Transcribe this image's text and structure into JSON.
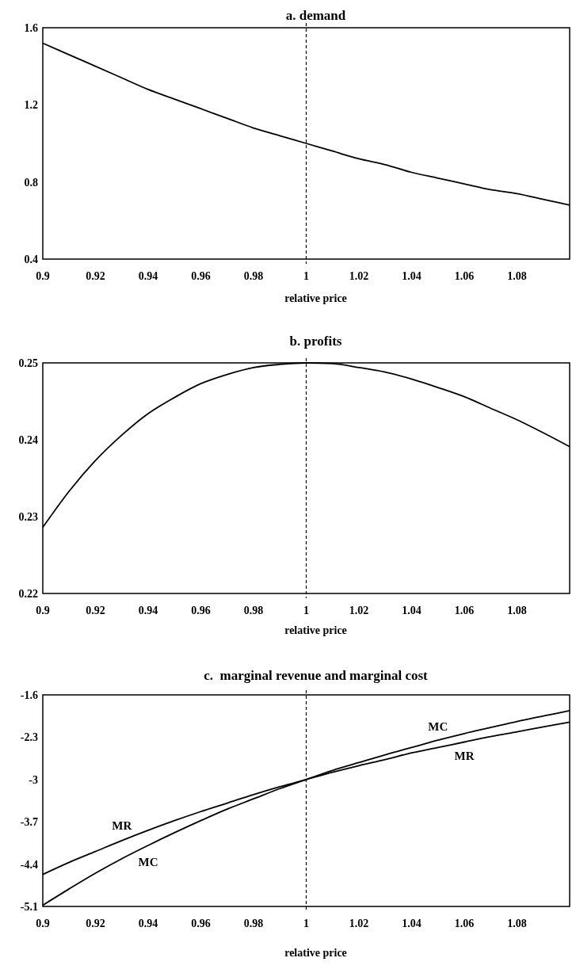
{
  "chart_data": [
    {
      "type": "line",
      "title": "a. demand",
      "xlabel": "relative price",
      "x": [
        0.9,
        0.91,
        0.92,
        0.93,
        0.94,
        0.95,
        0.96,
        0.97,
        0.98,
        0.99,
        1,
        1.01,
        1.02,
        1.03,
        1.04,
        1.05,
        1.06,
        1.07,
        1.08,
        1.09,
        1.1
      ],
      "series": [
        {
          "color": "#000000",
          "values": [
            1.52,
            1.46,
            1.4,
            1.34,
            1.28,
            1.23,
            1.18,
            1.13,
            1.08,
            1.04,
            1,
            0.96,
            0.92,
            0.89,
            0.85,
            0.82,
            0.79,
            0.76,
            0.74,
            0.71,
            0.68
          ]
        }
      ],
      "xlim": [
        0.9,
        1.1
      ],
      "xticks": [
        0.9,
        0.92,
        0.94,
        0.96,
        0.98,
        1,
        1.02,
        1.04,
        1.06,
        1.08
      ],
      "ylim": [
        0.4,
        1.6
      ],
      "yticks": [
        0.4,
        0.8,
        1.2,
        1.6
      ],
      "ref_lines": [
        {
          "axis": "x",
          "value": 1,
          "line_style": "dashed",
          "color": "#000000"
        }
      ],
      "grid": false
    },
    {
      "type": "line",
      "title": "b. profits",
      "xlabel": "relative price",
      "x": [
        0.9,
        0.91,
        0.92,
        0.93,
        0.94,
        0.95,
        0.96,
        0.97,
        0.98,
        0.99,
        1,
        1.01,
        1.02,
        1.03,
        1.04,
        1.05,
        1.06,
        1.07,
        1.08,
        1.09,
        1.1
      ],
      "series": [
        {
          "color": "#000000",
          "values": [
            0.2286,
            0.2333,
            0.2373,
            0.2406,
            0.2434,
            0.2455,
            0.2473,
            0.2485,
            0.2494,
            0.2498,
            0.25,
            0.2499,
            0.2494,
            0.2488,
            0.2479,
            0.2468,
            0.2456,
            0.2441,
            0.2426,
            0.2409,
            0.2391
          ]
        }
      ],
      "xlim": [
        0.9,
        1.1
      ],
      "xticks": [
        0.9,
        0.92,
        0.94,
        0.96,
        0.98,
        1,
        1.02,
        1.04,
        1.06,
        1.08
      ],
      "ylim": [
        0.22,
        0.25
      ],
      "yticks": [
        0.22,
        0.23,
        0.24,
        0.25
      ],
      "ref_lines": [
        {
          "axis": "x",
          "value": 1,
          "line_style": "dashed",
          "color": "#000000"
        }
      ],
      "grid": false
    },
    {
      "type": "line",
      "title": "c.  marginal revenue and marginal cost",
      "xlabel": "relative price",
      "x": [
        0.9,
        0.91,
        0.92,
        0.93,
        0.94,
        0.95,
        0.96,
        0.97,
        0.98,
        0.99,
        1,
        1.01,
        1.02,
        1.03,
        1.04,
        1.05,
        1.06,
        1.07,
        1.08,
        1.09,
        1.1
      ],
      "series": [
        {
          "name": "MR",
          "color": "#000000",
          "values": [
            -4.57,
            -4.37,
            -4.19,
            -4.01,
            -3.84,
            -3.68,
            -3.53,
            -3.39,
            -3.25,
            -3.12,
            -3,
            -2.88,
            -2.77,
            -2.67,
            -2.56,
            -2.47,
            -2.38,
            -2.29,
            -2.21,
            -2.13,
            -2.05
          ]
        },
        {
          "name": "MC",
          "color": "#000000",
          "values": [
            -5.08,
            -4.81,
            -4.55,
            -4.31,
            -4.09,
            -3.88,
            -3.68,
            -3.49,
            -3.32,
            -3.15,
            -3,
            -2.85,
            -2.72,
            -2.59,
            -2.47,
            -2.35,
            -2.24,
            -2.14,
            -2.04,
            -1.95,
            -1.86
          ]
        }
      ],
      "xlim": [
        0.9,
        1.1
      ],
      "xticks": [
        0.9,
        0.92,
        0.94,
        0.96,
        0.98,
        1,
        1.02,
        1.04,
        1.06,
        1.08
      ],
      "ylim": [
        -5.1,
        -1.6
      ],
      "yticks": [
        -5.1,
        -4.4,
        -3.7,
        -3,
        -2.3,
        -1.6
      ],
      "ref_lines": [
        {
          "axis": "x",
          "value": 1,
          "line_style": "dashed",
          "color": "#000000"
        }
      ],
      "grid": false
    }
  ]
}
